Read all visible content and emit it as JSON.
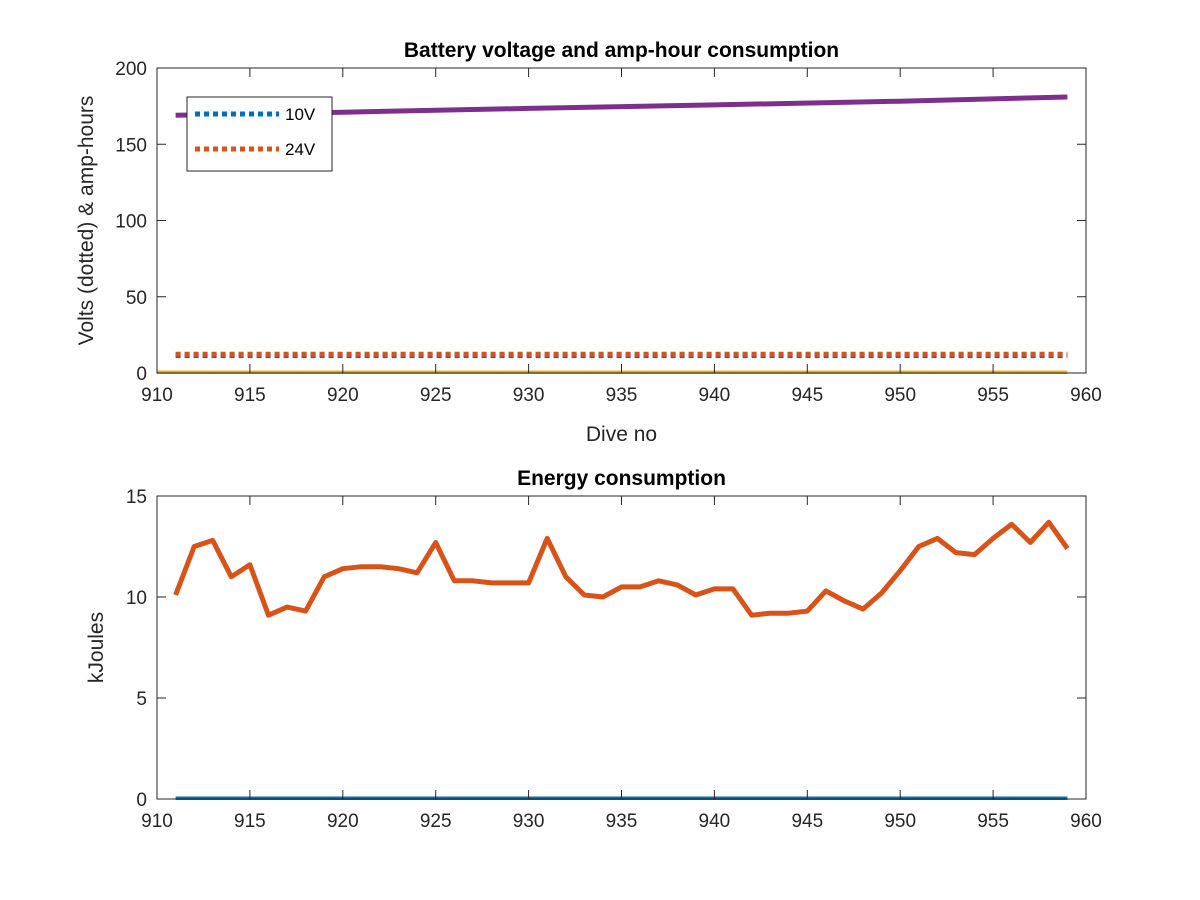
{
  "chart_data": [
    {
      "type": "line",
      "title": "Battery voltage and amp-hour consumption",
      "xlabel": "Dive no",
      "ylabel": "Volts (dotted) & amp-hours",
      "xlim": [
        910,
        960
      ],
      "ylim": [
        0,
        200
      ],
      "xticks": [
        910,
        915,
        920,
        925,
        930,
        935,
        940,
        945,
        950,
        955,
        960
      ],
      "yticks": [
        0,
        50,
        100,
        150,
        200
      ],
      "grid": false,
      "legend_position": "top-left",
      "series": [
        {
          "name": "10V",
          "style": "dotted",
          "color": "#0072BD",
          "x": [
            911,
            959
          ],
          "y": [
            11.4,
            11.4
          ],
          "in_legend": true
        },
        {
          "name": "24V",
          "style": "dotted",
          "color": "#D95319",
          "x": [
            911,
            959
          ],
          "y": [
            12.3,
            12.3
          ],
          "in_legend": true
        },
        {
          "style": "solid",
          "color": "#7E2F8E",
          "x": [
            911,
            920,
            930,
            940,
            950,
            959
          ],
          "y": [
            169,
            171,
            173.5,
            175.8,
            178.2,
            181
          ],
          "in_legend": false
        },
        {
          "style": "solid",
          "color": "#EDB120",
          "x": [
            910,
            959
          ],
          "y": [
            0,
            0
          ],
          "in_legend": false
        }
      ]
    },
    {
      "type": "line",
      "title": "Energy consumption",
      "xlabel": "",
      "ylabel": "kJoules",
      "xlim": [
        910,
        960
      ],
      "ylim": [
        0,
        15
      ],
      "xticks": [
        910,
        915,
        920,
        925,
        930,
        935,
        940,
        945,
        950,
        955,
        960
      ],
      "yticks": [
        0,
        5,
        10,
        15
      ],
      "grid": false,
      "series": [
        {
          "style": "solid",
          "color": "#D95319",
          "x": [
            911,
            912,
            913,
            914,
            915,
            916,
            917,
            918,
            919,
            920,
            921,
            922,
            923,
            924,
            925,
            926,
            927,
            928,
            929,
            930,
            931,
            932,
            933,
            934,
            935,
            936,
            937,
            938,
            939,
            940,
            941,
            942,
            943,
            944,
            945,
            946,
            947,
            948,
            949,
            950,
            951,
            952,
            953,
            954,
            955,
            956,
            957,
            958,
            959
          ],
          "y": [
            10.1,
            12.5,
            12.8,
            11.0,
            11.6,
            9.1,
            9.5,
            9.3,
            11.0,
            11.4,
            11.5,
            11.5,
            11.4,
            11.2,
            12.7,
            10.8,
            10.8,
            10.7,
            10.7,
            10.7,
            12.9,
            11.0,
            10.1,
            10.0,
            10.5,
            10.5,
            10.8,
            10.6,
            10.1,
            10.4,
            10.4,
            9.1,
            9.2,
            9.2,
            9.3,
            10.3,
            9.8,
            9.4,
            10.2,
            11.3,
            12.5,
            12.9,
            12.2,
            12.1,
            12.9,
            13.6,
            12.7,
            13.7,
            12.4
          ]
        },
        {
          "style": "solid",
          "color": "#0072BD",
          "x": [
            911,
            959
          ],
          "y": [
            0,
            0
          ]
        }
      ]
    }
  ]
}
